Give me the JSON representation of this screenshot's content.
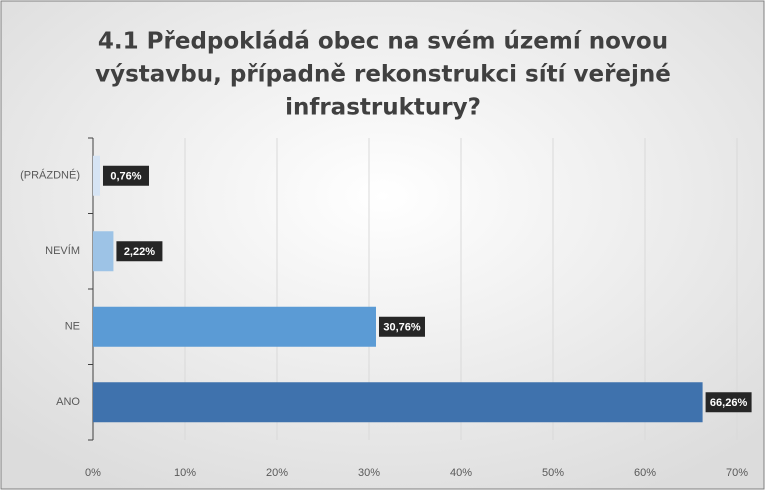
{
  "chart_data": {
    "type": "hbar",
    "title": [
      "4.1 Předpokládá obec na svém území novou",
      "výstavbu, případně rekonstrukci sítí veřejné",
      "infrastruktury?"
    ],
    "categories": [
      "(PRÁZDNÉ)",
      "NEVÍM",
      "NE",
      "ANO"
    ],
    "values": [
      0.76,
      2.22,
      30.76,
      66.26
    ],
    "value_labels": [
      "0,76%",
      "2,22%",
      "30,76%",
      "66,26%"
    ],
    "colors": [
      "#d6e4f4",
      "#9dc3e6",
      "#5b9bd5",
      "#3f72ad"
    ],
    "xlim": [
      0,
      70
    ],
    "xticks": [
      {
        "value": 0,
        "label": "0%"
      },
      {
        "value": 10,
        "label": "10%"
      },
      {
        "value": 20,
        "label": "20%"
      },
      {
        "value": 30,
        "label": "30%"
      },
      {
        "value": 40,
        "label": "40%"
      },
      {
        "value": 50,
        "label": "50%"
      },
      {
        "value": 60,
        "label": "60%"
      },
      {
        "value": 70,
        "label": "70%"
      }
    ],
    "grid": true
  }
}
